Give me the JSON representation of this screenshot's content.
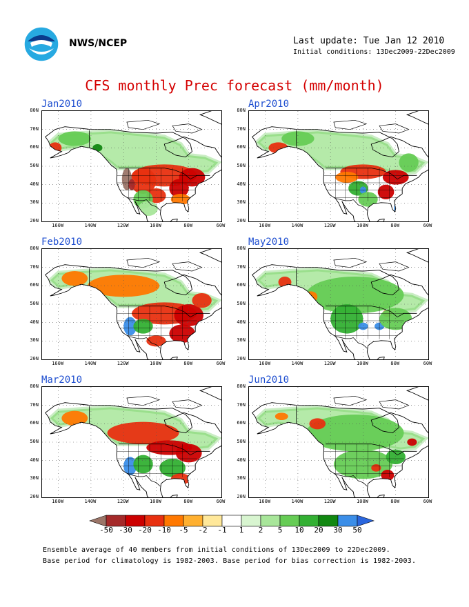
{
  "header": {
    "agency": "NWS/NCEP",
    "last_update": "Last update: Tue Jan 12 2010",
    "initial_conditions": "Initial conditions: 13Dec2009-22Dec2009"
  },
  "title": "CFS monthly Prec forecast (mm/month)",
  "axes": {
    "lat_labels": [
      "80N",
      "70N",
      "60N",
      "50N",
      "40N",
      "30N",
      "20N"
    ],
    "lon_labels": [
      "160W",
      "140W",
      "120W",
      "100W",
      "80W",
      "60W"
    ]
  },
  "panels": [
    {
      "label": "Jan2010",
      "pattern": "jan"
    },
    {
      "label": "Apr2010",
      "pattern": "apr"
    },
    {
      "label": "Feb2010",
      "pattern": "feb"
    },
    {
      "label": "May2010",
      "pattern": "may"
    },
    {
      "label": "Mar2010",
      "pattern": "mar"
    },
    {
      "label": "Jun2010",
      "pattern": "jun"
    }
  ],
  "colorbar": {
    "labels": [
      "-50",
      "-30",
      "-20",
      "-10",
      "-5",
      "-2",
      "-1",
      "1",
      "2",
      "5",
      "10",
      "20",
      "30",
      "50"
    ],
    "colors": [
      "#9b7568",
      "#a52a2a",
      "#cc0000",
      "#e83010",
      "#ff7800",
      "#ffb030",
      "#ffe89a",
      "#ffffff",
      "#d8f5d0",
      "#a8e69a",
      "#66cc55",
      "#33b033",
      "#118811",
      "#3b8ee8",
      "#2a66dd"
    ]
  },
  "footer": {
    "line1": "Ensemble average of 40 members from initial conditions of 13Dec2009 to 22Dec2009.",
    "line2": "Base period for climatology is 1982-2003. Base period for bias correction is 1982-2003."
  }
}
